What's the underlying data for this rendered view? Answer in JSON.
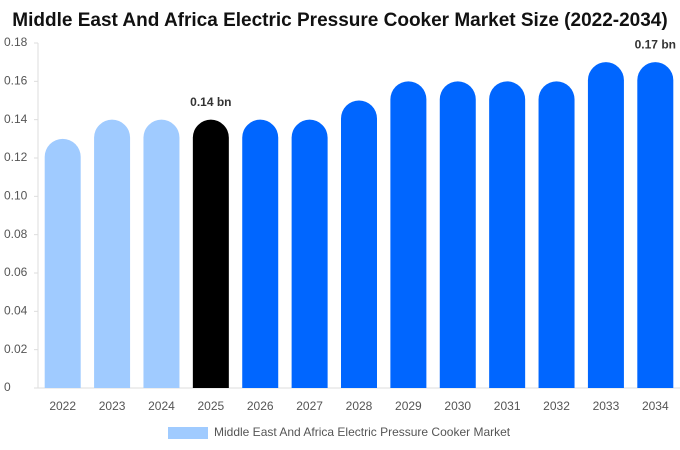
{
  "chart_data": {
    "type": "bar",
    "title": "Middle East And Africa Electric Pressure Cooker Market Size (2022-2034)",
    "categories": [
      "2022",
      "2023",
      "2024",
      "2025",
      "2026",
      "2027",
      "2028",
      "2029",
      "2030",
      "2031",
      "2032",
      "2033",
      "2034"
    ],
    "series": [
      {
        "name": "Middle East And Africa Electric Pressure Cooker Market",
        "color": "#a0cbff",
        "values": [
          0.13,
          0.14,
          0.14,
          0.14,
          0.14,
          0.14,
          0.15,
          0.16,
          0.16,
          0.16,
          0.16,
          0.17,
          0.17
        ],
        "value_labels": [
          null,
          null,
          null,
          "0.14 bn",
          null,
          null,
          null,
          null,
          null,
          null,
          null,
          null,
          "0.17 bn"
        ],
        "colors": [
          "#a0cbff",
          "#a0cbff",
          "#a0cbff",
          "#000000",
          "#0066ff",
          "#0066ff",
          "#0066ff",
          "#0066ff",
          "#0066ff",
          "#0066ff",
          "#0066ff",
          "#0066ff",
          "#0066ff"
        ]
      }
    ],
    "ylim": [
      0,
      0.18
    ],
    "yticks": [
      0,
      0.02,
      0.04,
      0.06,
      0.08,
      {
        "value": 0.1,
        "label": "0.10"
      },
      0.12,
      0.14,
      0.16,
      0.18
    ]
  }
}
